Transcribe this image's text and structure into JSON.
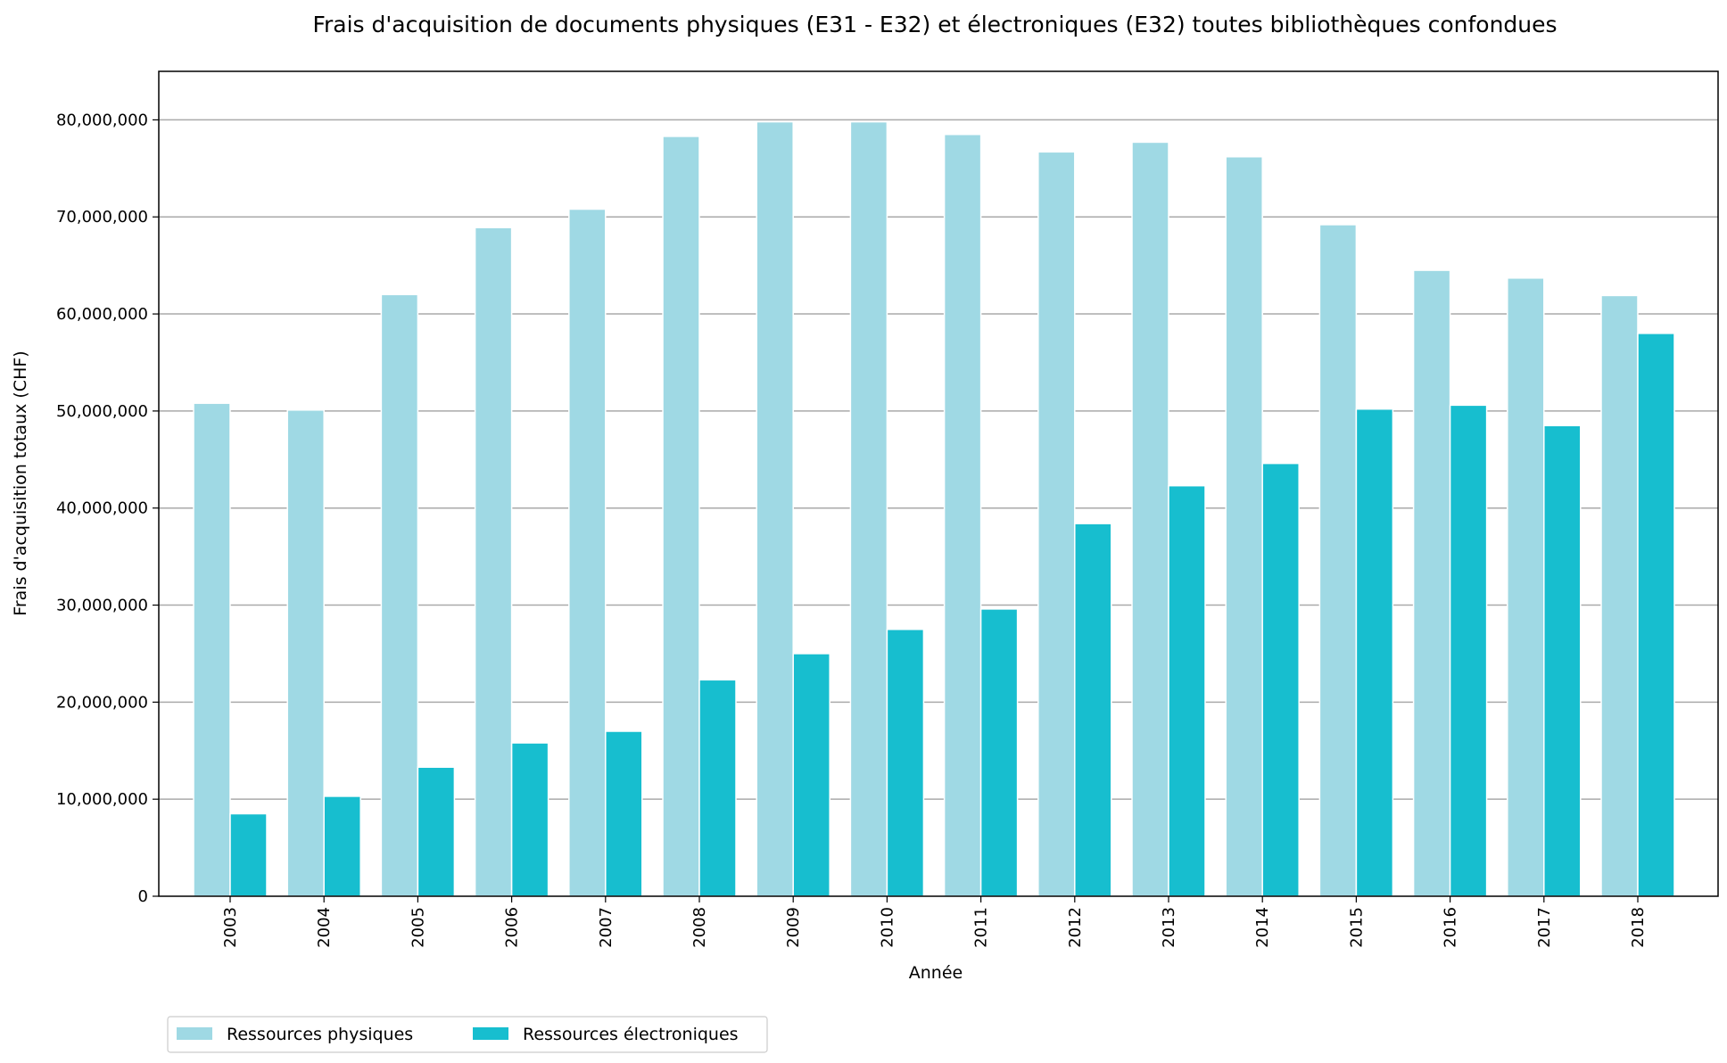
{
  "chart_data": {
    "type": "bar",
    "title": "Frais d'acquisition de documents physiques (E31 - E32) et électroniques (E32) toutes bibliothèques confondues",
    "xlabel": "Année",
    "ylabel": "Frais d'acquisition totaux (CHF)",
    "ylim": [
      0,
      85000000
    ],
    "yticks": [
      0,
      10000000,
      20000000,
      30000000,
      40000000,
      50000000,
      60000000,
      70000000,
      80000000
    ],
    "ytick_labels": [
      "0",
      "10,000,000",
      "20,000,000",
      "30,000,000",
      "40,000,000",
      "50,000,000",
      "60,000,000",
      "70,000,000",
      "80,000,000"
    ],
    "grid": "horizontal",
    "legend_position": "bottom-left",
    "categories": [
      "2003",
      "2004",
      "2005",
      "2006",
      "2007",
      "2008",
      "2009",
      "2010",
      "2011",
      "2012",
      "2013",
      "2014",
      "2015",
      "2016",
      "2017",
      "2018"
    ],
    "series": [
      {
        "name": "Ressources physiques",
        "color": "#9fd9e4",
        "values": [
          50800000,
          50100000,
          62000000,
          68900000,
          70800000,
          78300000,
          79800000,
          79800000,
          78500000,
          76700000,
          77700000,
          76200000,
          69200000,
          64500000,
          63700000,
          61900000
        ]
      },
      {
        "name": "Ressources électroniques",
        "color": "#17becf",
        "values": [
          8500000,
          10300000,
          13300000,
          15800000,
          17000000,
          22300000,
          25000000,
          27500000,
          29600000,
          38400000,
          42300000,
          44600000,
          50200000,
          50600000,
          48500000,
          58000000
        ]
      }
    ]
  }
}
